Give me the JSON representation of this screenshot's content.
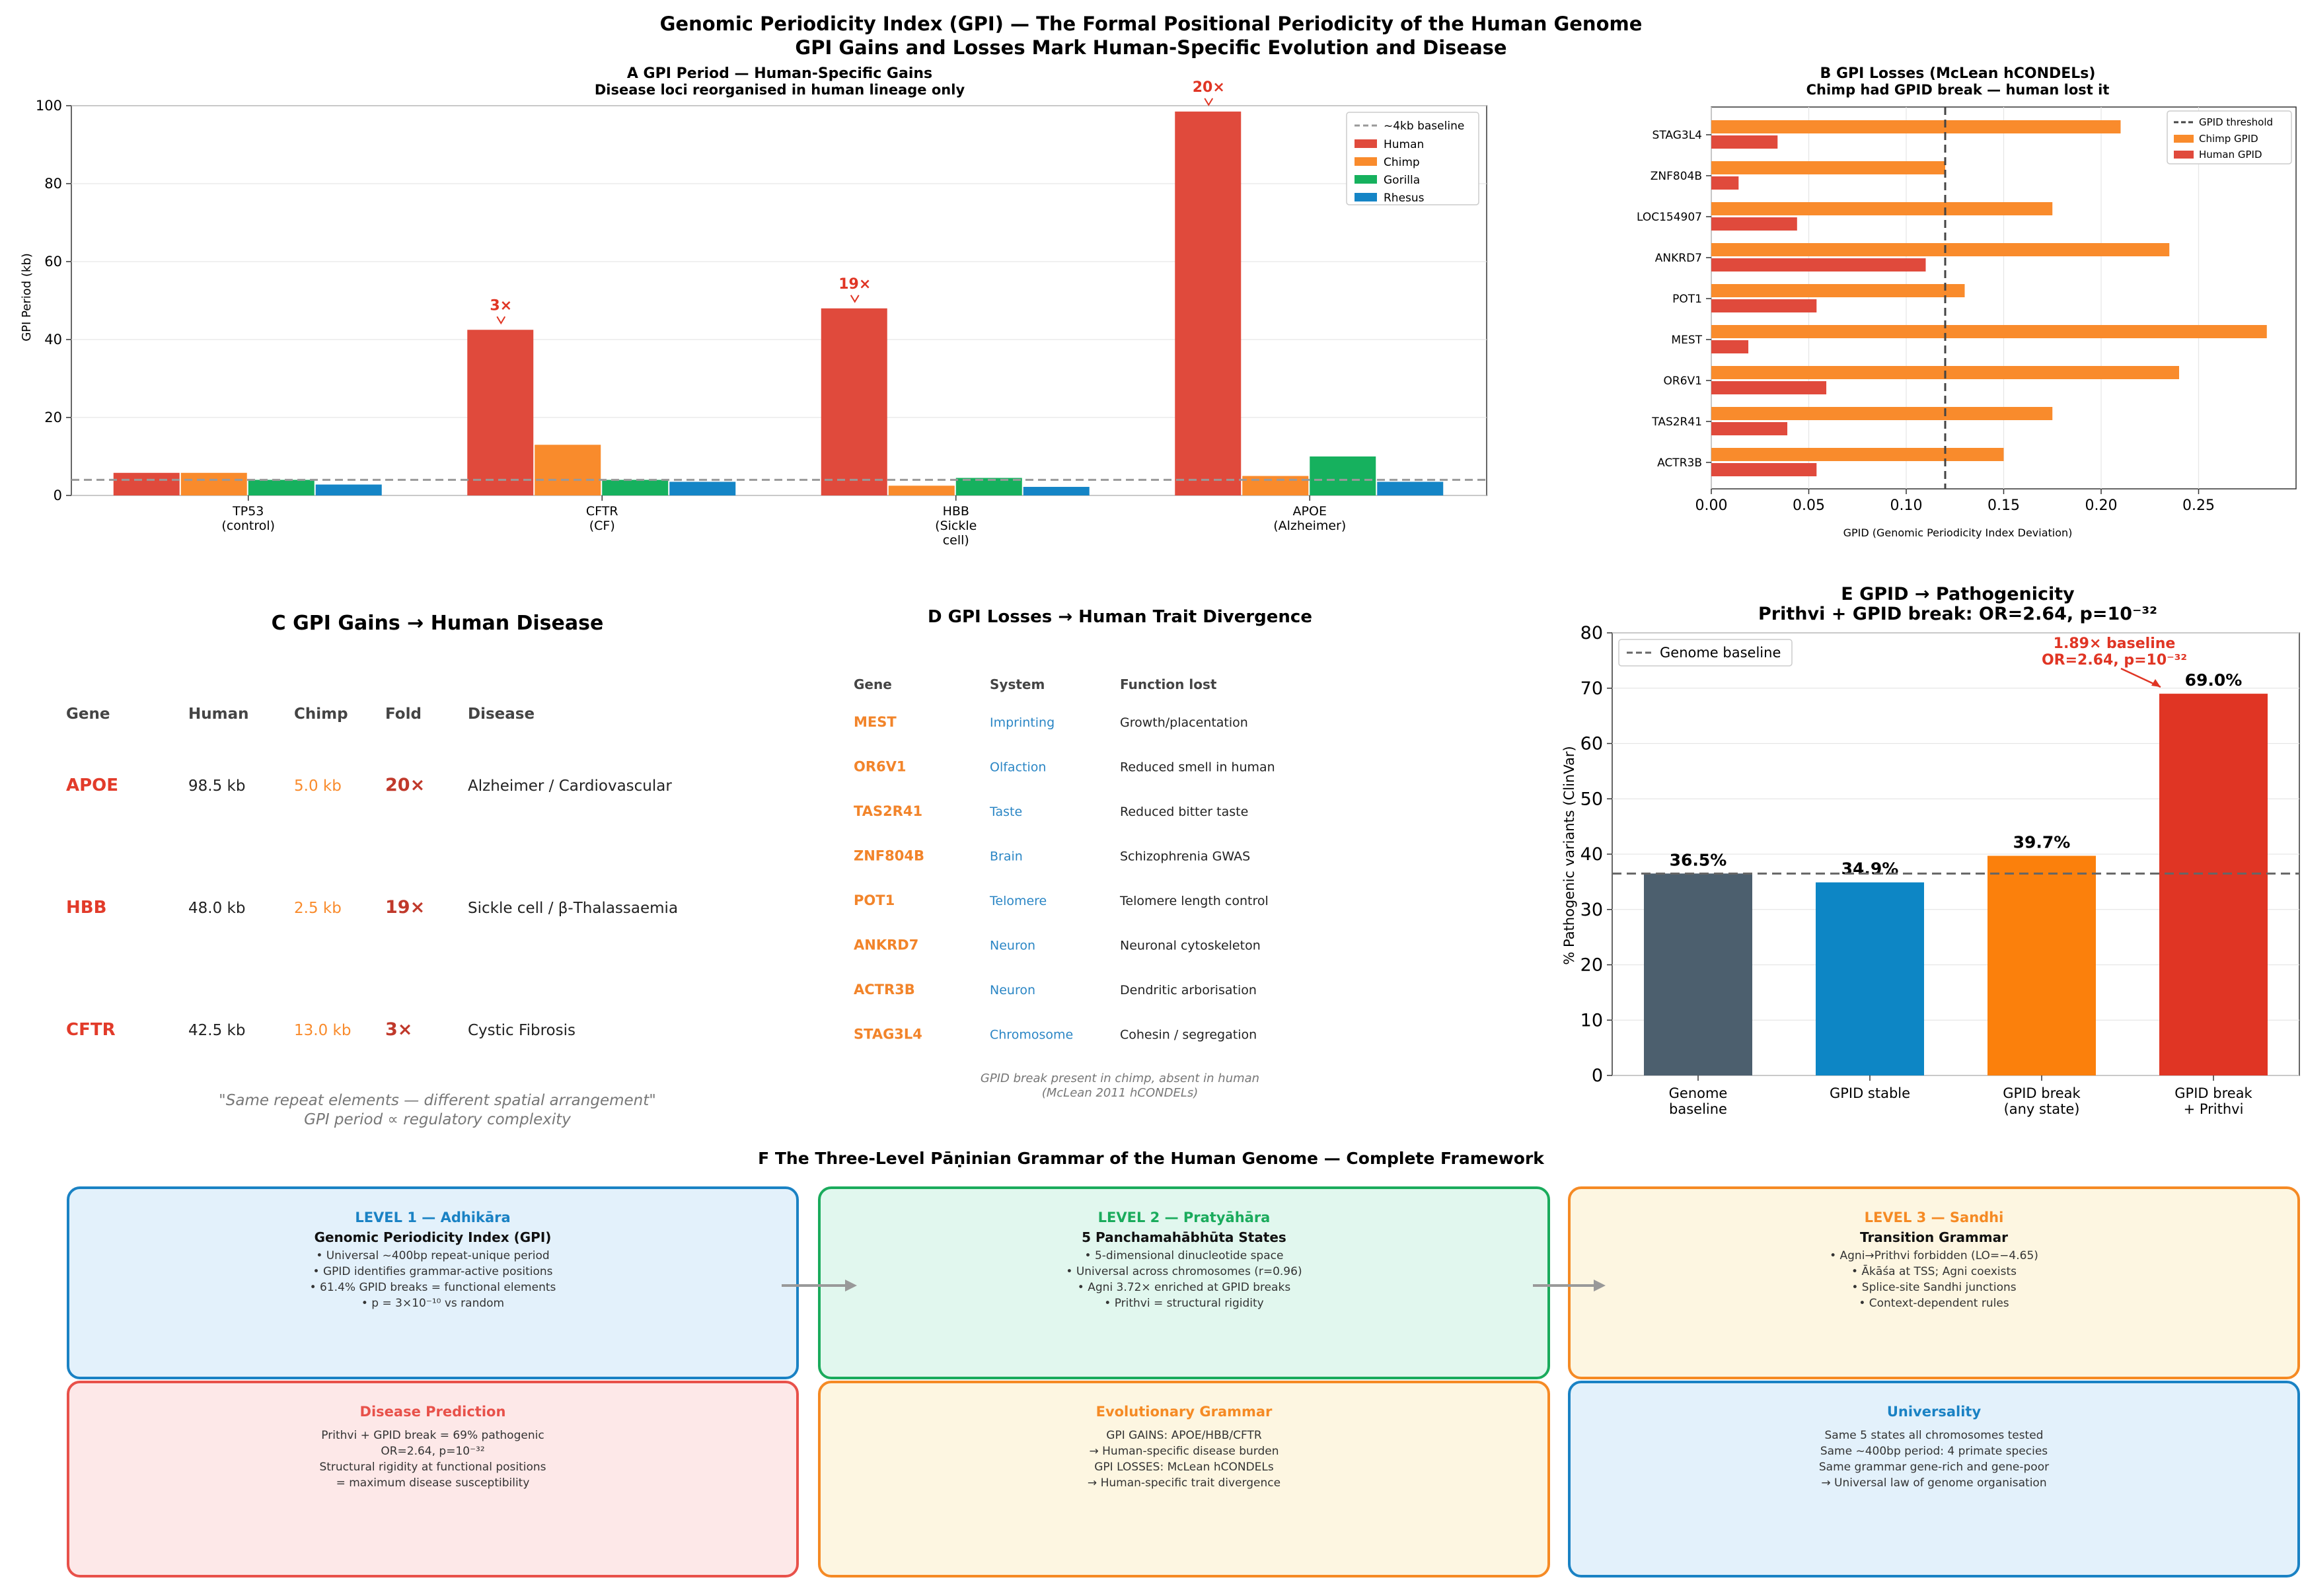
{
  "figure": {
    "title_line1": "Genomic Periodicity Index (GPI) — The Formal Positional Periodicity of the Human Genome",
    "title_line2": "GPI Gains and Losses Mark Human-Specific Evolution and Disease"
  },
  "colors": {
    "human": "#e04a3c",
    "chimp": "#f98b2c",
    "gorilla": "#16b15e",
    "rhesus": "#1585c6",
    "gene": "#e23b2a",
    "gene_d": "#f2842a",
    "system": "#2b86c5",
    "fold": "#c0392b",
    "genome": "#4c5f6e",
    "stable": "#0d86c5",
    "any": "#fb800c",
    "prithvi": "#e03524"
  },
  "chart_data": [
    {
      "id": "A",
      "type": "bar",
      "title": "A   GPI Period — Human-Specific Gains",
      "subtitle": "Disease loci reorganised in human lineage only",
      "categories": [
        "TP53\n(control)",
        "CFTR\n(CF)",
        "HBB\n(Sickle\ncell)",
        "APOE\n(Alzheimer)"
      ],
      "series": [
        {
          "name": "Human",
          "values": [
            5.8,
            42.5,
            48.0,
            98.5
          ]
        },
        {
          "name": "Chimp",
          "values": [
            5.8,
            13.0,
            2.5,
            5.0
          ]
        },
        {
          "name": "Gorilla",
          "values": [
            4.0,
            4.0,
            4.5,
            10.0
          ]
        },
        {
          "name": "Rhesus",
          "values": [
            2.8,
            3.5,
            2.2,
            3.5
          ]
        }
      ],
      "annotations": [
        "",
        "3×",
        "19×",
        "20×"
      ],
      "baseline": {
        "label": "~4kb baseline",
        "value": 4.0
      },
      "ylabel": "GPI Period (kb)",
      "ylim": [
        0,
        100
      ],
      "yticks": [
        0,
        20,
        40,
        60,
        80,
        100
      ],
      "legend": "top-right"
    },
    {
      "id": "B",
      "type": "bar",
      "orientation": "horizontal",
      "title": "B   GPI Losses (McLean hCONDELs)",
      "subtitle": "Chimp had GPID break — human lost it",
      "categories": [
        "STAG3L4",
        "ZNF804B",
        "LOC154907",
        "ANKRD7",
        "POT1",
        "MEST",
        "OR6V1",
        "TAS2R41",
        "ACTR3B"
      ],
      "series": [
        {
          "name": "Chimp GPID",
          "values": [
            0.21,
            0.12,
            0.175,
            0.235,
            0.13,
            0.285,
            0.24,
            0.175,
            0.15
          ]
        },
        {
          "name": "Human GPID",
          "values": [
            0.034,
            0.014,
            0.044,
            0.11,
            0.054,
            0.019,
            0.059,
            0.039,
            0.054
          ]
        }
      ],
      "threshold": {
        "label": "GPID threshold",
        "value": 0.12
      },
      "xlabel": "GPID (Genomic Periodicity Index Deviation)",
      "xlim": [
        0,
        0.3
      ],
      "xticks": [
        0.0,
        0.05,
        0.1,
        0.15,
        0.2,
        0.25
      ],
      "xtick_labels": [
        "0.00",
        "0.05",
        "0.10",
        "0.15",
        "0.20",
        "0.25"
      ],
      "legend": "top-right"
    },
    {
      "id": "C",
      "type": "table",
      "title": "C   GPI Gains → Human Disease",
      "columns": [
        "Gene",
        "Human",
        "Chimp",
        "Fold",
        "Disease"
      ],
      "rows": [
        [
          "APOE",
          "98.5 kb",
          "5.0 kb",
          "20×",
          "Alzheimer / Cardiovascular"
        ],
        [
          "HBB",
          "48.0 kb",
          "2.5 kb",
          "19×",
          "Sickle cell / β-Thalassaemia"
        ],
        [
          "CFTR",
          "42.5 kb",
          "13.0 kb",
          "3×",
          "Cystic Fibrosis"
        ]
      ],
      "footnote1": "\"Same repeat elements — different spatial arrangement\"",
      "footnote2": "GPI period ∝ regulatory complexity"
    },
    {
      "id": "D",
      "type": "table",
      "title": "D   GPI Losses → Human Trait Divergence",
      "columns": [
        "Gene",
        "System",
        "Function lost"
      ],
      "rows": [
        [
          "MEST",
          "Imprinting",
          "Growth/placentation"
        ],
        [
          "OR6V1",
          "Olfaction",
          "Reduced smell in human"
        ],
        [
          "TAS2R41",
          "Taste",
          "Reduced bitter taste"
        ],
        [
          "ZNF804B",
          "Brain",
          "Schizophrenia GWAS"
        ],
        [
          "POT1",
          "Telomere",
          "Telomere length control"
        ],
        [
          "ANKRD7",
          "Neuron",
          "Neuronal cytoskeleton"
        ],
        [
          "ACTR3B",
          "Neuron",
          "Dendritic arborisation"
        ],
        [
          "STAG3L4",
          "Chromosome",
          "Cohesin / segregation"
        ]
      ],
      "footnote1": "GPID break present in chimp, absent in human",
      "footnote2": "(McLean 2011 hCONDELs)"
    },
    {
      "id": "E",
      "type": "bar",
      "title": "E   GPID → Pathogenicity",
      "subtitle": "Prithvi + GPID break: OR=2.64, p=10⁻³²",
      "categories": [
        "Genome\nbaseline",
        "GPID stable",
        "GPID break\n(any state)",
        "GPID break\n+ Prithvi"
      ],
      "values": [
        36.5,
        34.9,
        39.7,
        69.0
      ],
      "value_labels": [
        "36.5%",
        "34.9%",
        "39.7%",
        "69.0%"
      ],
      "baseline": {
        "label": "Genome baseline",
        "value": 36.5
      },
      "annotation_line1": "1.89× baseline",
      "annotation_line2": "OR=2.64, p=10⁻³²",
      "ylabel": "% Pathogenic variants (ClinVar)",
      "ylim": [
        0,
        80
      ],
      "yticks": [
        0,
        10,
        20,
        30,
        40,
        50,
        60,
        70,
        80
      ],
      "legend": "top-left"
    }
  ],
  "panelF": {
    "title": "F   The Three-Level Pāṇinian Grammar of the Human Genome — Complete Framework",
    "boxes": [
      {
        "title": "LEVEL 1 — Adhikāra",
        "subtitle": "Genomic Periodicity Index (GPI)",
        "lines": [
          "• Universal ~400bp repeat-unique period",
          "• GPID identifies grammar-active positions",
          "• 61.4% GPID breaks = functional elements",
          "• p = 3×10⁻¹⁰ vs random"
        ]
      },
      {
        "title": "LEVEL 2 — Pratyāhāra",
        "subtitle": "5 Panchamahābhūta States",
        "lines": [
          "• 5-dimensional dinucleotide space",
          "• Universal across chromosomes (r=0.96)",
          "• Agni 3.72× enriched at GPID breaks",
          "• Prithvi = structural rigidity"
        ]
      },
      {
        "title": "LEVEL 3 — Sandhi",
        "subtitle": "Transition Grammar",
        "lines": [
          "• Agni→Prithvi forbidden (LO=−4.65)",
          "• Ākāśa at TSS; Agni coexists",
          "• Splice-site Sandhi junctions",
          "• Context-dependent rules"
        ]
      },
      {
        "title": "Disease Prediction",
        "subtitle": "",
        "lines": [
          "Prithvi + GPID break = 69% pathogenic",
          "OR=2.64, p=10⁻³²",
          "Structural rigidity at functional positions",
          "= maximum disease susceptibility"
        ]
      },
      {
        "title": "Evolutionary Grammar",
        "subtitle": "",
        "lines": [
          "GPI GAINS: APOE/HBB/CFTR",
          "→ Human-specific disease burden",
          "GPI LOSSES: McLean hCONDELs",
          "→ Human-specific trait divergence"
        ]
      },
      {
        "title": "Universality",
        "subtitle": "",
        "lines": [
          "Same 5 states all chromosomes tested",
          "Same ~400bp period: 4 primate species",
          "Same grammar gene-rich and gene-poor",
          "→ Universal law of genome organisation"
        ]
      }
    ]
  }
}
